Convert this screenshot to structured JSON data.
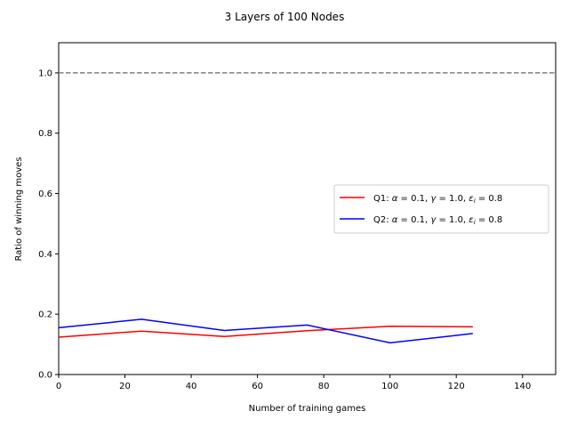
{
  "chart_data": {
    "type": "line",
    "title": "3 Layers of 100 Nodes",
    "xlabel": "Number of training games",
    "ylabel": "Ratio of winning moves",
    "xlim": [
      0,
      150
    ],
    "ylim": [
      0,
      1.1
    ],
    "xticks": [
      0,
      20,
      40,
      60,
      80,
      100,
      120,
      140
    ],
    "yticks": [
      0.0,
      0.2,
      0.4,
      0.6,
      0.8,
      1.0
    ],
    "x_tick_labels": [
      "0",
      "20",
      "40",
      "60",
      "80",
      "100",
      "120",
      "140"
    ],
    "y_tick_labels": [
      "0.0",
      "0.2",
      "0.4",
      "0.6",
      "0.8",
      "1.0"
    ],
    "grid": false,
    "legend_position": "center-right",
    "reference_line": {
      "y": 1.0,
      "style": "dashed",
      "color": "#808080"
    },
    "series": [
      {
        "name_parts": [
          "Q1: ",
          "α",
          " = 0.1, ",
          "γ",
          " = 1.0, ",
          "ε",
          "i",
          " = 0.8"
        ],
        "color": "#ff0000",
        "x": [
          0,
          25,
          50,
          75,
          100,
          125
        ],
        "y": [
          0.124,
          0.144,
          0.126,
          0.145,
          0.16,
          0.158
        ]
      },
      {
        "name_parts": [
          "Q2: ",
          "α",
          " = 0.1, ",
          "γ",
          " = 1.0, ",
          "ε",
          "i",
          " = 0.8"
        ],
        "color": "#0000ff",
        "x": [
          0,
          25,
          50,
          75,
          100,
          125
        ],
        "y": [
          0.155,
          0.183,
          0.146,
          0.164,
          0.105,
          0.136
        ]
      }
    ]
  }
}
